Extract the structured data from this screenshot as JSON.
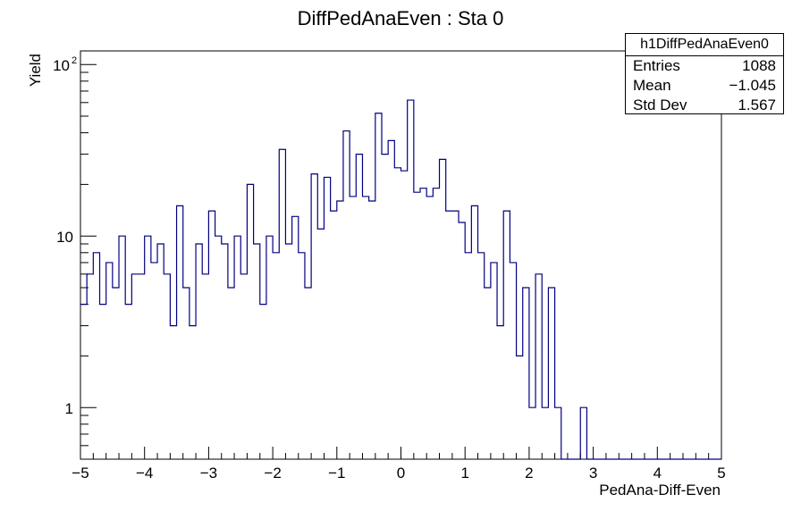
{
  "chart_data": {
    "type": "histogram",
    "title": "DiffPedAnaEven : Sta 0",
    "xlabel": "PedAna-Diff-Even",
    "ylabel": "Yield",
    "xlim": [
      -5,
      5
    ],
    "ylim": [
      0.5,
      120
    ],
    "yscale": "log",
    "bin_width": 0.1,
    "x_ticks": [
      "−5",
      "−4",
      "−3",
      "−2",
      "−1",
      "0",
      "1",
      "2",
      "3",
      "4",
      "5"
    ],
    "x_tick_values": [
      -5,
      -4,
      -3,
      -2,
      -1,
      0,
      1,
      2,
      3,
      4,
      5
    ],
    "y_ticks": [
      {
        "value": 1,
        "label": "1"
      },
      {
        "value": 10,
        "label": "10"
      },
      {
        "value": 100,
        "label": "10",
        "exp": "2"
      }
    ],
    "line_color": "#000080",
    "bin_edges_start": -5,
    "values": [
      4,
      6,
      8,
      4,
      7,
      5,
      10,
      4,
      6,
      6,
      10,
      7,
      9,
      6,
      3,
      15,
      5,
      3,
      9,
      6,
      14,
      10,
      9,
      5,
      10,
      6,
      20,
      9,
      4,
      10,
      8,
      32,
      9,
      13,
      8,
      5,
      23,
      11,
      22,
      14,
      16,
      41,
      17,
      30,
      17,
      16,
      52,
      30,
      36,
      25,
      24,
      62,
      18,
      19,
      17,
      19,
      28,
      14,
      14,
      12,
      8,
      15,
      8,
      5,
      7,
      3,
      14,
      7,
      2,
      5,
      1,
      6,
      1,
      5,
      1,
      0,
      0,
      0,
      1,
      0,
      0,
      0,
      0,
      0,
      0,
      0,
      0,
      0,
      0,
      0,
      0,
      0,
      0,
      0,
      0,
      0,
      0,
      0,
      0,
      0
    ]
  },
  "stats": {
    "name": "h1DiffPedAnaEven0",
    "rows": [
      {
        "label": "Entries",
        "value": "1088"
      },
      {
        "label": "Mean",
        "value": "−1.045"
      },
      {
        "label": "Std Dev",
        "value": "1.567"
      }
    ]
  }
}
